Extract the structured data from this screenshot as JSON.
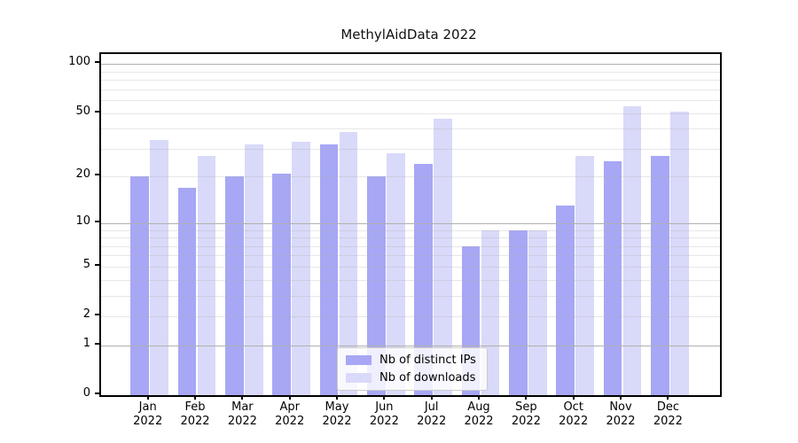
{
  "chart_data": {
    "type": "bar",
    "title": "MethylAidData 2022",
    "xlabel": "",
    "ylabel": "",
    "yscale": "log1p",
    "ylim": [
      0,
      115
    ],
    "y_ticks": [
      0,
      1,
      2,
      5,
      10,
      20,
      50,
      100
    ],
    "grid": {
      "major_at": [
        1,
        10,
        100
      ],
      "minor_at": [
        2,
        3,
        4,
        5,
        6,
        7,
        8,
        9,
        20,
        30,
        40,
        50,
        60,
        70,
        80,
        90
      ],
      "major_color": "#b0b0b0",
      "minor_color": "#e6e6e6",
      "grid_on_top": true
    },
    "categories": [
      "Jan 2022",
      "Feb 2022",
      "Mar 2022",
      "Apr 2022",
      "May 2022",
      "Jun 2022",
      "Jul 2022",
      "Aug 2022",
      "Sep 2022",
      "Oct 2022",
      "Nov 2022",
      "Dec 2022"
    ],
    "series": [
      {
        "name": "Nb of distinct IPs",
        "color": "#a7a7f5",
        "values": [
          20,
          17,
          20,
          21,
          32,
          20,
          24,
          7,
          9,
          13,
          25,
          27
        ]
      },
      {
        "name": "Nb of downloads",
        "color": "#d9d9f9",
        "values": [
          34,
          27,
          32,
          33,
          38,
          28,
          46,
          9,
          9,
          27,
          55,
          51
        ]
      }
    ],
    "legend": {
      "position": "lower center",
      "entries": [
        "Nb of distinct IPs",
        "Nb of downloads"
      ]
    }
  }
}
